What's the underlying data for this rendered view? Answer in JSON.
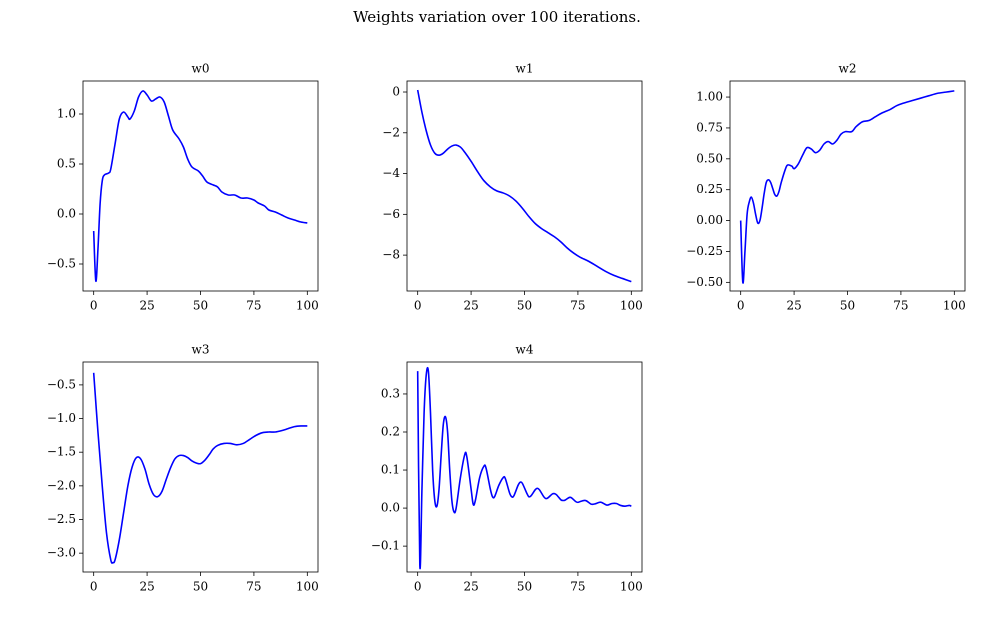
{
  "title": "Weights variation over 100 iterations.",
  "chart_data": [
    {
      "type": "line",
      "title": "w0",
      "color": "#0000ff",
      "x": [
        0,
        1,
        2,
        3,
        4,
        5,
        7,
        8,
        10,
        12,
        14,
        16,
        17,
        19,
        21,
        23,
        25,
        27,
        29,
        31,
        33,
        35,
        37,
        40,
        42,
        44,
        46,
        49,
        51,
        53,
        56,
        58,
        60,
        63,
        66,
        69,
        72,
        75,
        77,
        80,
        82,
        85,
        88,
        91,
        94,
        97,
        100
      ],
      "values": [
        -0.17,
        -0.67,
        -0.35,
        0.1,
        0.33,
        0.39,
        0.41,
        0.45,
        0.7,
        0.95,
        1.02,
        0.97,
        0.95,
        1.03,
        1.17,
        1.23,
        1.19,
        1.13,
        1.15,
        1.17,
        1.12,
        0.98,
        0.84,
        0.75,
        0.67,
        0.55,
        0.47,
        0.43,
        0.38,
        0.32,
        0.29,
        0.27,
        0.22,
        0.19,
        0.19,
        0.16,
        0.16,
        0.14,
        0.11,
        0.08,
        0.04,
        0.02,
        -0.01,
        -0.04,
        -0.06,
        -0.08,
        -0.09
      ],
      "xlim": [
        -5,
        105
      ],
      "xticks": [
        0,
        25,
        50,
        75,
        100
      ],
      "ylim": [
        -0.77,
        1.33
      ],
      "yticks": [
        {
          "value": -0.5,
          "label": "−0.5"
        },
        {
          "value": 0,
          "label": "0.0"
        },
        {
          "value": 0.5,
          "label": "0.5"
        },
        {
          "value": 1,
          "label": "1.0"
        }
      ]
    },
    {
      "type": "line",
      "title": "w1",
      "color": "#0000ff",
      "x": [
        0,
        2,
        4,
        6,
        8,
        10,
        12,
        14,
        16,
        18,
        20,
        22,
        25,
        28,
        31,
        34,
        37,
        40,
        43,
        46,
        49,
        52,
        55,
        58,
        61,
        64,
        67,
        70,
        73,
        76,
        80,
        84,
        88,
        92,
        96,
        100
      ],
      "values": [
        0.1,
        -1.0,
        -1.9,
        -2.6,
        -3.0,
        -3.1,
        -3.0,
        -2.8,
        -2.65,
        -2.6,
        -2.7,
        -2.95,
        -3.4,
        -3.9,
        -4.35,
        -4.65,
        -4.85,
        -4.95,
        -5.1,
        -5.35,
        -5.7,
        -6.1,
        -6.45,
        -6.7,
        -6.9,
        -7.1,
        -7.35,
        -7.65,
        -7.9,
        -8.1,
        -8.3,
        -8.55,
        -8.8,
        -9.0,
        -9.15,
        -9.3
      ],
      "xlim": [
        -5,
        105
      ],
      "xticks": [
        0,
        25,
        50,
        75,
        100
      ],
      "ylim": [
        -9.76,
        0.54
      ],
      "yticks": [
        {
          "value": -8,
          "label": "−8"
        },
        {
          "value": -6,
          "label": "−6"
        },
        {
          "value": -4,
          "label": "−4"
        },
        {
          "value": -2,
          "label": "−2"
        },
        0
      ]
    },
    {
      "type": "line",
      "title": "w2",
      "color": "#0000ff",
      "x": [
        0,
        1,
        2,
        3,
        4,
        5,
        6,
        7,
        8,
        9,
        10,
        11,
        12,
        13,
        14,
        15,
        16,
        17,
        18,
        19,
        21,
        22,
        24,
        25,
        27,
        29,
        31,
        33,
        35,
        37,
        39,
        41,
        43,
        45,
        47,
        49,
        52,
        54,
        57,
        60,
        63,
        66,
        70,
        73,
        76,
        80,
        84,
        88,
        92,
        96,
        100
      ],
      "values": [
        0.0,
        -0.5,
        -0.25,
        0.05,
        0.15,
        0.19,
        0.14,
        0.05,
        -0.02,
        0.0,
        0.1,
        0.22,
        0.31,
        0.33,
        0.31,
        0.26,
        0.21,
        0.2,
        0.24,
        0.31,
        0.42,
        0.45,
        0.44,
        0.42,
        0.46,
        0.53,
        0.59,
        0.58,
        0.55,
        0.57,
        0.62,
        0.64,
        0.62,
        0.65,
        0.7,
        0.72,
        0.72,
        0.76,
        0.8,
        0.81,
        0.84,
        0.87,
        0.9,
        0.93,
        0.95,
        0.97,
        0.99,
        1.01,
        1.03,
        1.04,
        1.05
      ],
      "xlim": [
        -5,
        105
      ],
      "xticks": [
        0,
        25,
        50,
        75,
        100
      ],
      "ylim": [
        -0.57,
        1.13
      ],
      "yticks": [
        {
          "value": -0.5,
          "label": "−0.50"
        },
        {
          "value": -0.25,
          "label": "−0.25"
        },
        {
          "value": 0,
          "label": "0.00"
        },
        {
          "value": 0.25,
          "label": "0.25"
        },
        {
          "value": 0.5,
          "label": "0.50"
        },
        0.75,
        {
          "value": 1,
          "label": "1.00"
        }
      ]
    },
    {
      "type": "line",
      "title": "w3",
      "color": "#0000ff",
      "x": [
        0,
        2,
        4,
        6,
        8,
        9,
        10,
        12,
        14,
        16,
        18,
        20,
        22,
        24,
        26,
        28,
        30,
        32,
        34,
        36,
        38,
        40,
        42,
        44,
        46,
        48,
        50,
        52,
        54,
        56,
        58,
        61,
        64,
        67,
        70,
        73,
        76,
        79,
        82,
        85,
        88,
        91,
        94,
        97,
        100
      ],
      "values": [
        -0.32,
        -1.2,
        -2.0,
        -2.7,
        -3.1,
        -3.14,
        -3.1,
        -2.8,
        -2.4,
        -2.0,
        -1.72,
        -1.58,
        -1.6,
        -1.75,
        -1.98,
        -2.13,
        -2.16,
        -2.08,
        -1.9,
        -1.73,
        -1.6,
        -1.55,
        -1.55,
        -1.58,
        -1.63,
        -1.66,
        -1.67,
        -1.62,
        -1.54,
        -1.45,
        -1.4,
        -1.37,
        -1.37,
        -1.39,
        -1.37,
        -1.31,
        -1.25,
        -1.21,
        -1.2,
        -1.2,
        -1.18,
        -1.15,
        -1.12,
        -1.11,
        -1.11
      ],
      "xlim": [
        -5,
        105
      ],
      "xticks": [
        0,
        25,
        50,
        75,
        100
      ],
      "ylim": [
        -3.28,
        -0.16
      ],
      "yticks": [
        {
          "value": -3,
          "label": "−3.0"
        },
        {
          "value": -2.5,
          "label": "−2.5"
        },
        {
          "value": -2,
          "label": "−2.0"
        },
        {
          "value": -1.5,
          "label": "−1.5"
        },
        {
          "value": -1,
          "label": "−1.0"
        },
        {
          "value": -0.5,
          "label": "−0.5"
        }
      ]
    },
    {
      "type": "line",
      "title": "w4",
      "color": "#0000ff",
      "x": [
        0,
        1,
        2,
        3,
        4,
        5,
        6,
        7,
        8,
        9,
        10,
        11,
        12,
        13,
        14,
        15,
        16,
        17,
        18,
        20,
        22,
        23,
        25,
        26,
        27,
        29,
        31,
        32,
        34,
        35,
        36,
        38,
        40,
        41,
        43,
        44,
        45,
        47,
        48,
        49,
        51,
        52,
        53,
        55,
        56,
        57,
        59,
        60,
        61,
        63,
        64,
        65,
        67,
        68,
        69,
        71,
        72,
        74,
        75,
        76,
        78,
        79,
        81,
        82,
        83,
        85,
        86,
        88,
        89,
        91,
        93,
        95,
        97,
        99,
        100
      ],
      "values": [
        0.36,
        -0.15,
        0.05,
        0.25,
        0.35,
        0.36,
        0.25,
        0.1,
        0.02,
        0.005,
        0.05,
        0.14,
        0.22,
        0.24,
        0.2,
        0.1,
        0.02,
        -0.01,
        0.0,
        0.08,
        0.14,
        0.135,
        0.05,
        0.01,
        0.02,
        0.08,
        0.11,
        0.105,
        0.05,
        0.03,
        0.03,
        0.06,
        0.08,
        0.078,
        0.04,
        0.03,
        0.032,
        0.06,
        0.068,
        0.065,
        0.04,
        0.03,
        0.032,
        0.048,
        0.052,
        0.048,
        0.03,
        0.025,
        0.027,
        0.037,
        0.038,
        0.035,
        0.022,
        0.02,
        0.021,
        0.028,
        0.027,
        0.017,
        0.015,
        0.017,
        0.02,
        0.019,
        0.011,
        0.01,
        0.011,
        0.015,
        0.015,
        0.009,
        0.008,
        0.012,
        0.012,
        0.007,
        0.005,
        0.007,
        0.005
      ],
      "xlim": [
        -5,
        105
      ],
      "xticks": [
        0,
        25,
        50,
        75,
        100
      ],
      "ylim": [
        -0.168,
        0.384
      ],
      "yticks": [
        {
          "value": -0.1,
          "label": "−0.1"
        },
        {
          "value": 0,
          "label": "0.0"
        },
        0.1,
        0.2,
        0.3
      ]
    }
  ]
}
